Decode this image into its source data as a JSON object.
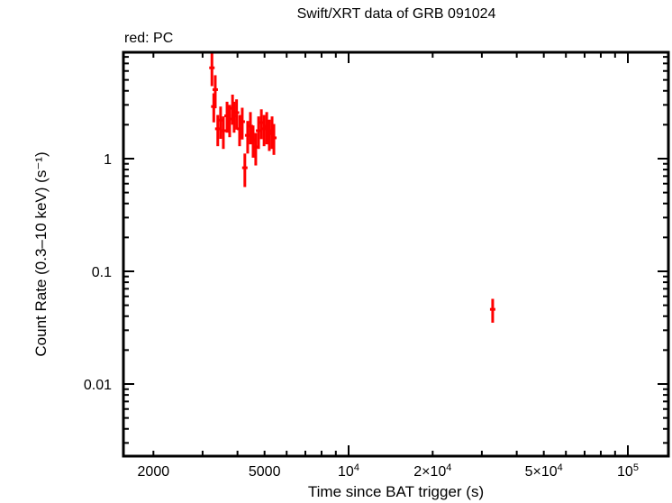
{
  "chart_data": {
    "type": "scatter",
    "title": "Swift/XRT data of GRB 091024",
    "subtitle": "red: PC",
    "xlabel": "Time since BAT trigger (s)",
    "ylabel": "Count Rate (0.3–10 keV) (s⁻¹)",
    "xscale": "log",
    "yscale": "log",
    "xlim": [
      1640,
      150000
    ],
    "ylim": [
      0.0023,
      9.5
    ],
    "x_tick_labels": [
      "2000",
      "5000",
      "10⁴",
      "2×10⁴",
      "5×10⁴",
      "10⁵"
    ],
    "x_tick_values": [
      2000,
      5000,
      10000,
      20000,
      50000,
      100000
    ],
    "y_tick_labels": [
      "1",
      "0.1",
      "0.01"
    ],
    "y_tick_values": [
      1,
      0.1,
      0.01
    ],
    "grid": false,
    "legend": null,
    "series": [
      {
        "name": "PC",
        "color": "#ff0000",
        "points": [
          {
            "t": 3240,
            "rate": 6.4,
            "err_lo": 2.0,
            "err_hi": 2.2
          },
          {
            "t": 3290,
            "rate": 2.9,
            "err_lo": 0.8,
            "err_hi": 0.9
          },
          {
            "t": 3330,
            "rate": 4.1,
            "err_lo": 1.3,
            "err_hi": 1.4
          },
          {
            "t": 3400,
            "rate": 1.84,
            "err_lo": 0.55,
            "err_hi": 0.6
          },
          {
            "t": 3480,
            "rate": 2.2,
            "err_lo": 0.7,
            "err_hi": 0.7
          },
          {
            "t": 3560,
            "rate": 1.77,
            "err_lo": 0.55,
            "err_hi": 0.6
          },
          {
            "t": 3670,
            "rate": 2.4,
            "err_lo": 0.7,
            "err_hi": 0.8
          },
          {
            "t": 3750,
            "rate": 2.25,
            "err_lo": 0.7,
            "err_hi": 0.75
          },
          {
            "t": 3840,
            "rate": 2.8,
            "err_lo": 0.8,
            "err_hi": 0.9
          },
          {
            "t": 3890,
            "rate": 2.4,
            "err_lo": 0.7,
            "err_hi": 0.8
          },
          {
            "t": 3970,
            "rate": 2.56,
            "err_lo": 0.75,
            "err_hi": 0.8
          },
          {
            "t": 4070,
            "rate": 1.84,
            "err_lo": 0.55,
            "err_hi": 0.6
          },
          {
            "t": 4160,
            "rate": 2.13,
            "err_lo": 0.65,
            "err_hi": 0.7
          },
          {
            "t": 4250,
            "rate": 0.83,
            "err_lo": 0.27,
            "err_hi": 0.28
          },
          {
            "t": 4350,
            "rate": 1.61,
            "err_lo": 0.5,
            "err_hi": 0.55
          },
          {
            "t": 4450,
            "rate": 1.94,
            "err_lo": 0.6,
            "err_hi": 0.65
          },
          {
            "t": 4550,
            "rate": 1.47,
            "err_lo": 0.45,
            "err_hi": 0.5
          },
          {
            "t": 4650,
            "rate": 1.27,
            "err_lo": 0.4,
            "err_hi": 0.42
          },
          {
            "t": 4760,
            "rate": 1.77,
            "err_lo": 0.55,
            "err_hi": 0.6
          },
          {
            "t": 4870,
            "rate": 2.09,
            "err_lo": 0.6,
            "err_hi": 0.65
          },
          {
            "t": 4980,
            "rate": 1.84,
            "err_lo": 0.55,
            "err_hi": 0.6
          },
          {
            "t": 5090,
            "rate": 1.94,
            "err_lo": 0.6,
            "err_hi": 0.65
          },
          {
            "t": 5200,
            "rate": 1.67,
            "err_lo": 0.5,
            "err_hi": 0.55
          },
          {
            "t": 5320,
            "rate": 1.77,
            "err_lo": 0.55,
            "err_hi": 0.6
          },
          {
            "t": 5400,
            "rate": 1.53,
            "err_lo": 0.45,
            "err_hi": 0.5
          },
          {
            "t": 32800,
            "rate": 0.046,
            "err_lo": 0.011,
            "err_hi": 0.011
          }
        ]
      }
    ]
  }
}
